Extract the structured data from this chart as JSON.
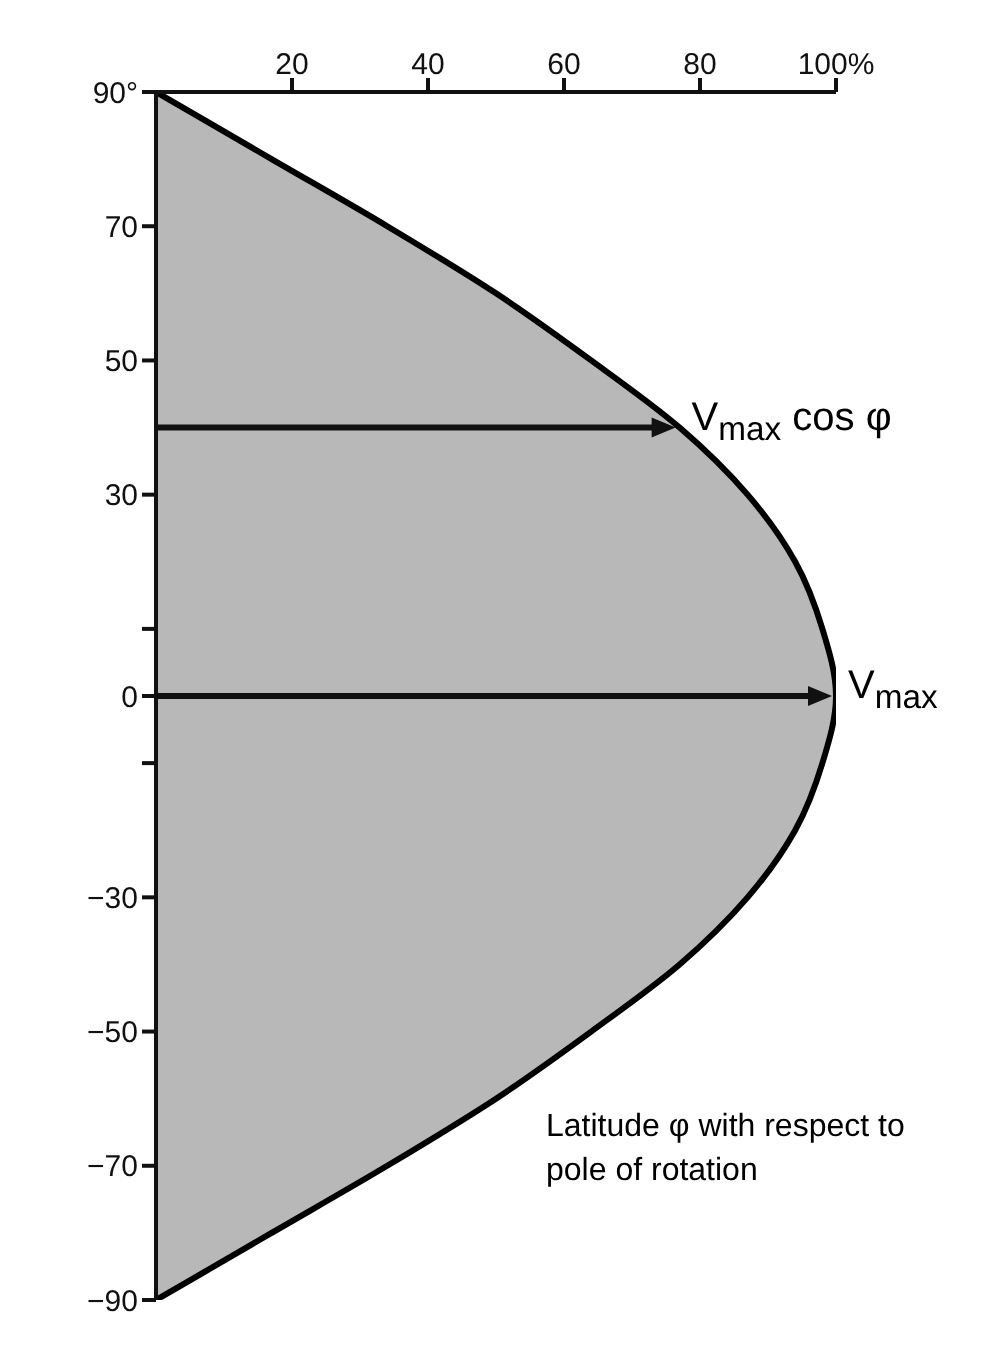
{
  "chart_data": {
    "type": "area",
    "orientation": "horizontal",
    "x": [
      90,
      80,
      70,
      60,
      50,
      40,
      30,
      20,
      10,
      0,
      -10,
      -20,
      -30,
      -40,
      -50,
      -60,
      -70,
      -80,
      -90
    ],
    "series": [
      {
        "color": "#000000",
        "values": [
          0,
          17,
          34,
          50,
          64,
          77,
          87,
          94,
          98,
          100,
          98,
          94,
          87,
          77,
          64,
          50,
          34,
          17,
          0
        ]
      }
    ],
    "xlim": [
      0,
      100
    ],
    "xticks": [
      20,
      40,
      60,
      80,
      {
        "value": 100,
        "label": "100%"
      }
    ],
    "ylim": [
      -90,
      90
    ],
    "yticks": [
      {
        "value": 90,
        "label": "90°"
      },
      70,
      50,
      30,
      {
        "value": 10,
        "label": null
      },
      0,
      {
        "value": -10,
        "label": null
      },
      {
        "value": -30,
        "label": "−30"
      },
      {
        "value": -50,
        "label": "−50"
      },
      {
        "value": -70,
        "label": "−70"
      },
      {
        "value": -90,
        "label": "−90"
      }
    ],
    "ylabel": "Latitude φ with respect to pole of rotation",
    "annotations": [
      {
        "text": "V$_{max}$ cos φ",
        "x": 77,
        "y": 40
      },
      {
        "text": "V$_{max}$",
        "x": 100,
        "y": 0
      }
    ]
  }
}
